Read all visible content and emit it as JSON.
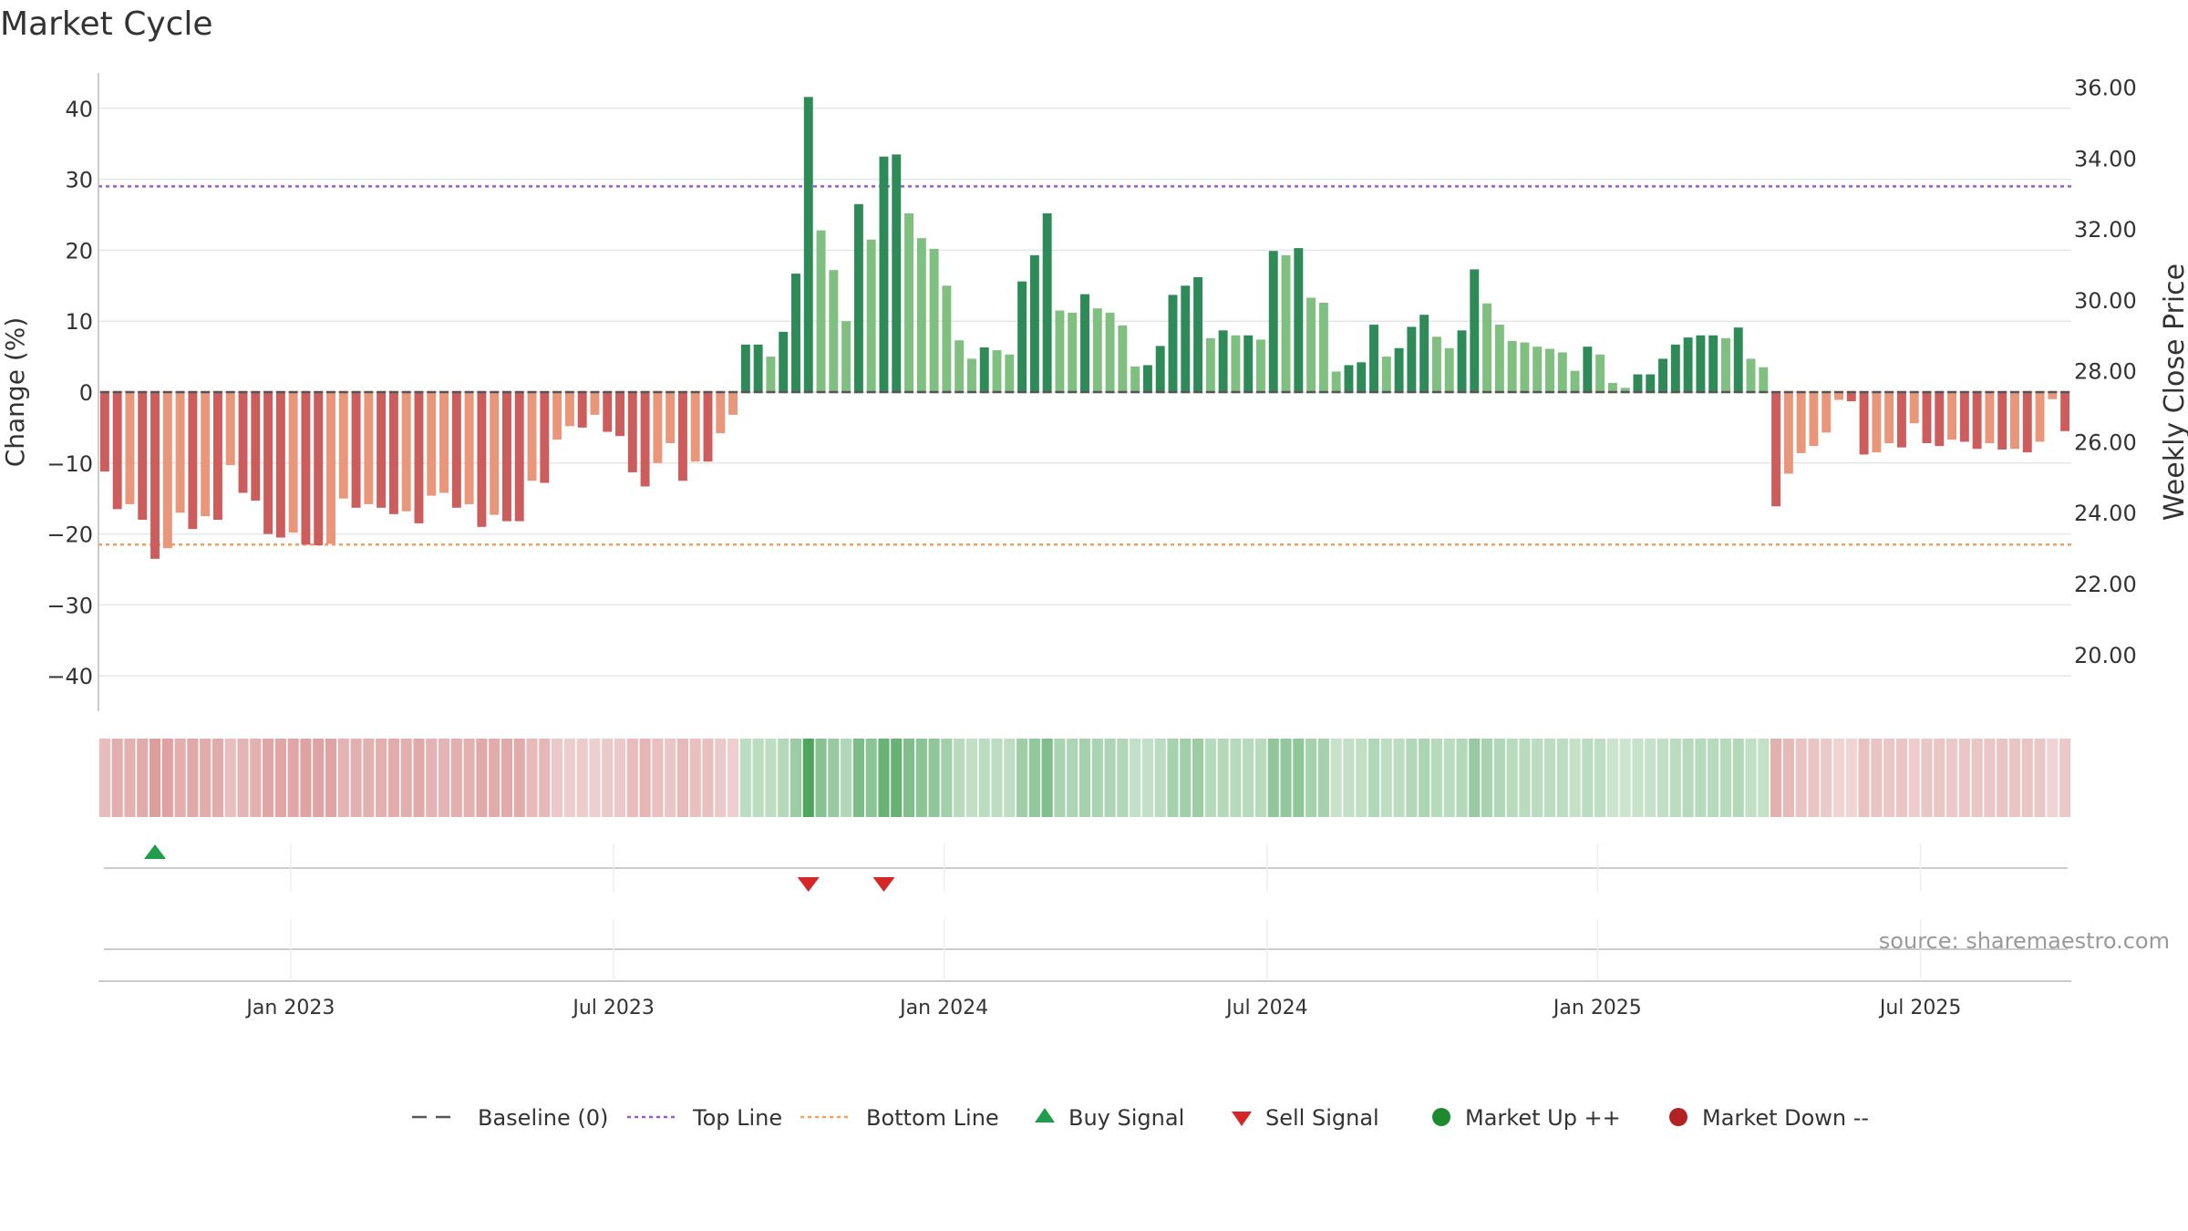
{
  "chart_data": {
    "type": "bar",
    "title": "Market Cycle",
    "ylabel": "Change (%)",
    "y2label": "Weekly Close Price",
    "ylim": [
      -45,
      45
    ],
    "y2lim": [
      18.4,
      36.4
    ],
    "yticks": [
      40,
      30,
      20,
      10,
      0,
      -10,
      -20,
      -30,
      -40
    ],
    "yticklabels": [
      "40",
      "30",
      "20",
      "10",
      "0",
      "−10",
      "−20",
      "−30",
      "−40"
    ],
    "y2ticks": [
      "36.00",
      "34.00",
      "32.00",
      "30.00",
      "28.00",
      "26.00",
      "24.00",
      "22.00",
      "20.00"
    ],
    "xticklabels": [
      "Jan 2023",
      "Jul 2023",
      "Jan 2024",
      "Jul 2024",
      "Jan 2025",
      "Jul 2025"
    ],
    "xtick_positions": [
      15.3,
      41.0,
      67.3,
      93.0,
      119.3,
      145.0
    ],
    "top_line": 29,
    "bottom_line": -21.5,
    "baseline": 0,
    "weeks": 157,
    "values": [
      -11.2,
      -16.5,
      -15.8,
      -18.0,
      -23.5,
      -22.0,
      -17.0,
      -19.3,
      -17.5,
      -18.0,
      -10.3,
      -14.2,
      -15.3,
      -20.0,
      -20.5,
      -19.8,
      -21.5,
      -21.6,
      -21.4,
      -15.0,
      -16.3,
      -15.8,
      -16.3,
      -17.2,
      -16.8,
      -18.5,
      -14.6,
      -14.2,
      -16.3,
      -15.8,
      -19.0,
      -17.3,
      -18.2,
      -18.2,
      -12.5,
      -12.8,
      -6.7,
      -4.8,
      -5.0,
      -3.2,
      -5.6,
      -6.2,
      -11.3,
      -13.3,
      -10.0,
      -7.2,
      -12.5,
      -9.8,
      -9.8,
      -5.8,
      -3.2,
      6.7,
      6.7,
      5.0,
      8.5,
      16.7,
      41.6,
      22.8,
      17.2,
      10.0,
      26.5,
      21.5,
      33.2,
      33.5,
      25.2,
      21.7,
      20.2,
      15.0,
      7.3,
      4.7,
      6.3,
      5.9,
      5.3,
      15.6,
      19.3,
      25.2,
      11.5,
      11.2,
      13.8,
      11.8,
      11.2,
      9.4,
      3.6,
      3.8,
      6.5,
      13.7,
      15.0,
      16.2,
      7.6,
      8.7,
      8.0,
      8.0,
      7.4,
      19.9,
      19.3,
      20.3,
      13.3,
      12.6,
      2.9,
      3.8,
      4.2,
      9.5,
      5.0,
      6.2,
      9.2,
      10.9,
      7.8,
      6.2,
      8.7,
      17.3,
      12.5,
      9.5,
      7.2,
      7.0,
      6.4,
      6.1,
      5.6,
      3.0,
      6.4,
      5.3,
      1.3,
      0.6,
      2.5,
      2.5,
      4.7,
      6.7,
      7.7,
      8.0,
      8.0,
      7.6,
      9.1,
      4.7,
      3.5,
      -16.1,
      -11.5,
      -8.6,
      -7.6,
      -5.7,
      -1.1,
      -1.3,
      -8.8,
      -8.5,
      -7.2,
      -7.8,
      -4.4,
      -7.2,
      -7.6,
      -6.7,
      -7.0,
      -8.0,
      -7.2,
      -8.1,
      -8.0,
      -8.5,
      -7.0,
      -1.0,
      -5.5
    ],
    "buy_signals": [
      4
    ],
    "sell_signals": [
      56,
      62
    ],
    "source": "source: sharemaestro.com",
    "legend": [
      {
        "label": "Baseline (0)",
        "marker": "dash",
        "color": "#555555"
      },
      {
        "label": "Top Line",
        "marker": "dotted",
        "color": "#9b59d0"
      },
      {
        "label": "Bottom Line",
        "marker": "dotted",
        "color": "#f0a060"
      },
      {
        "label": "Buy Signal",
        "marker": "triangle-up",
        "color": "#1e9e4a"
      },
      {
        "label": "Sell Signal",
        "marker": "triangle-down",
        "color": "#d62728"
      },
      {
        "label": "Market Up ++",
        "marker": "circle",
        "color": "#1e8a2e"
      },
      {
        "label": "Market Down --",
        "marker": "circle",
        "color": "#b22222"
      }
    ],
    "legend_position": "bottom-center",
    "grid": true,
    "colors": {
      "strong_up": "#2e8b57",
      "weak_up": "#7fbf7f",
      "strong_down": "#cd5c5c",
      "weak_down": "#e9967a",
      "top_line": "#9b59d0",
      "bottom_line": "#f0a060",
      "buy": "#1e9e4a",
      "sell": "#d62728"
    }
  }
}
